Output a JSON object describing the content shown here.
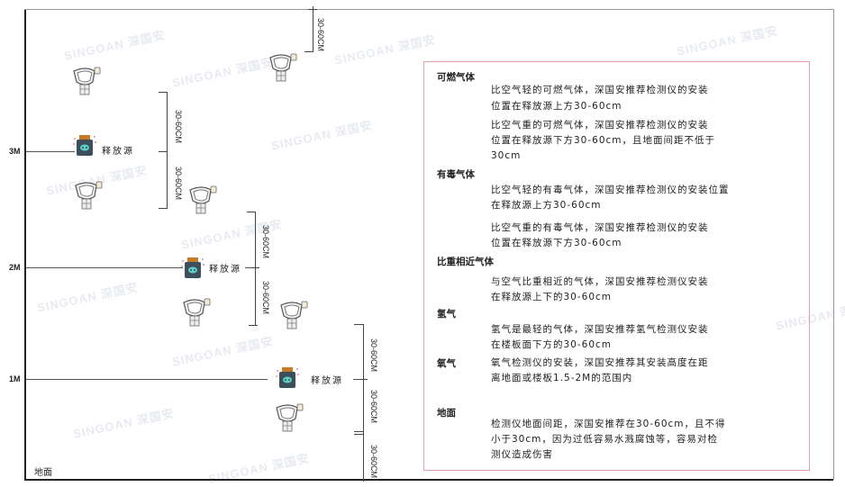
{
  "levels": {
    "m3": "3M",
    "m2": "2M",
    "m1": "1M",
    "ground": "地面"
  },
  "source_label": "释放源",
  "dimension_label": "30-60CM",
  "watermark": "SINGOAN 深国安",
  "notes": {
    "combustible": {
      "title": "可燃气体",
      "light_1": "比空气轻的可燃气体，深国安推荐检测仪的安装",
      "light_2": "位置在释放源上方30-60cm",
      "heavy_1": "比空气重的可燃气体，深国安推荐检测仪的安装",
      "heavy_2": "位置在释放源下方30-60cm，且地面间距不低于",
      "heavy_3": "30cm"
    },
    "toxic": {
      "title": "有毒气体",
      "light_1": "比空气轻的有毒气体，深国安推荐检测仪的安装位置",
      "light_2": "在释放源上方30-60cm",
      "heavy_1": "比空气重的有毒气体，深国安推荐检测仪的安装",
      "heavy_2": "位置在释放源下方30-60cm"
    },
    "similar": {
      "title": "比重相近气体",
      "line_1": "与空气比重相近的气体，深国安推荐检测仪安装",
      "line_2": "在释放源上下的30-60cm"
    },
    "hydrogen": {
      "title": "氢气",
      "line_1": "氢气是最轻的气体，深国安推荐氢气检测仪安装",
      "line_2": "在楼板面下方的30-60cm"
    },
    "oxygen": {
      "title": "氧气",
      "line_1": "氧气检测仪的安装，深国安推荐其安装高度在距",
      "line_2": "离地面或楼板1.5-2M的范围内"
    },
    "ground": {
      "title": "地面",
      "line_1": "检测仪地面间距，深国安推荐在30-60cm，且不得",
      "line_2": "小于30cm，因为过低容易水溅腐蚀等，容易对检",
      "line_3": "测仪造成伤害"
    }
  },
  "colors": {
    "note_border": "#e8a0a8",
    "source_body": "#3d4e5c",
    "source_cap": "#c77a2a",
    "source_face": "#5fd0c8"
  }
}
